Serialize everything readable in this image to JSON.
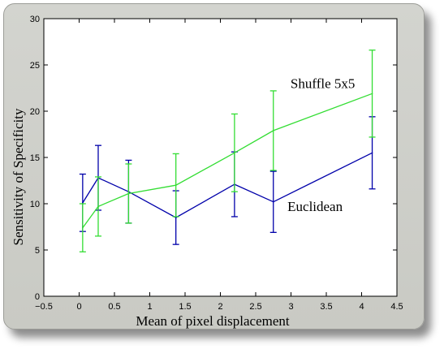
{
  "chart_data": {
    "type": "line",
    "title": "",
    "xlabel": "Mean of pixel displacement",
    "ylabel": "Sensitivity of Specificity",
    "xlim": [
      -0.5,
      4.5
    ],
    "ylim": [
      0,
      30
    ],
    "xticks": [
      -0.5,
      0,
      0.5,
      1,
      1.5,
      2,
      2.5,
      3,
      3.5,
      4,
      4.5
    ],
    "xtick_labels": [
      "−0.5",
      "0",
      "0.5",
      "1",
      "1.5",
      "2",
      "2.5",
      "3",
      "3.5",
      "4",
      "4.5"
    ],
    "yticks": [
      0,
      5,
      10,
      15,
      20,
      25,
      30
    ],
    "ytick_labels": [
      "0",
      "5",
      "10",
      "15",
      "20",
      "25",
      "30"
    ],
    "grid": false,
    "errorbars": true,
    "series": [
      {
        "name": "Euclidean",
        "color": "#0000aa",
        "x": [
          0.05,
          0.27,
          0.7,
          1.37,
          2.2,
          2.75,
          4.15
        ],
        "y": [
          10.1,
          12.8,
          11.3,
          8.5,
          12.1,
          10.2,
          15.5
        ],
        "err": [
          3.1,
          3.5,
          3.4,
          2.9,
          3.5,
          3.3,
          3.9
        ]
      },
      {
        "name": "Shuffle 5x5",
        "color": "#33dd33",
        "x": [
          0.05,
          0.27,
          0.7,
          1.37,
          2.2,
          2.75,
          4.15
        ],
        "y": [
          7.4,
          9.7,
          11.1,
          12.0,
          15.5,
          17.9,
          21.9
        ],
        "err": [
          2.6,
          3.2,
          3.2,
          3.4,
          4.2,
          4.3,
          4.7
        ]
      }
    ],
    "annotations": [
      {
        "text": "Shuffle 5x5",
        "x": 3.45,
        "y": 22.5,
        "anchor": "middle"
      },
      {
        "text": "Euclidean",
        "x": 2.95,
        "y": 9.2,
        "anchor": "start"
      }
    ]
  }
}
